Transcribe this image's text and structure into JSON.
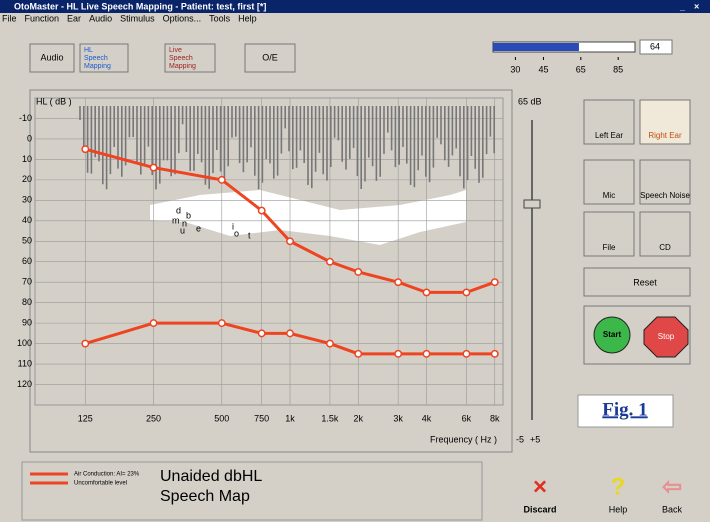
{
  "window": {
    "title": "OtoMaster - HL Live Speech Mapping - Patient: test, first [*]",
    "controls": [
      "_",
      "×"
    ]
  },
  "menu": [
    "File",
    "Function",
    "Ear",
    "Audio",
    "Stimulus",
    "Options...",
    "Tools",
    "Help"
  ],
  "toolbar": {
    "buttons": [
      "Audio",
      "HL Speech Mapping",
      "Live Speech Mapping",
      "O/E"
    ],
    "meter": {
      "value": 64,
      "lim": [
        18,
        94
      ],
      "ticks": [
        30,
        45,
        65,
        85
      ]
    }
  },
  "chart_data": {
    "type": "line",
    "ylabel": "HL ( dB )",
    "xlabel": "Frequency ( Hz )",
    "log_x": true,
    "invert_y": true,
    "grid": true,
    "xlim": [
      75,
      8700
    ],
    "xticks": [
      125,
      250,
      500,
      750,
      {
        "value": 1000,
        "label": "1k"
      },
      {
        "value": 1500,
        "label": "1.5k"
      },
      {
        "value": 2000,
        "label": "2k"
      },
      {
        "value": 3000,
        "label": "3k"
      },
      {
        "value": 4000,
        "label": "4k"
      },
      {
        "value": 6000,
        "label": "6k"
      },
      {
        "value": 8000,
        "label": "8k"
      }
    ],
    "ylim": [
      -20,
      130
    ],
    "yticks": [
      -10,
      0,
      10,
      20,
      30,
      40,
      50,
      60,
      70,
      80,
      90,
      100,
      110,
      120
    ],
    "x": [
      125,
      250,
      500,
      750,
      1000,
      1500,
      2000,
      3000,
      4000,
      6000,
      8000
    ],
    "series": [
      {
        "name": "Air Conduction: AI= 23%",
        "color": "#ee4422",
        "values": [
          5,
          14,
          20,
          35,
          50,
          60,
          65,
          70,
          75,
          75,
          70
        ]
      },
      {
        "name": "Uncomfortable level",
        "color": "#ee4422",
        "values": [
          100,
          90,
          90,
          95,
          95,
          100,
          105,
          105,
          105,
          105,
          105
        ]
      }
    ],
    "phonemes": [
      "d",
      "b",
      "m",
      "n",
      "u",
      "e",
      "i",
      "o",
      "t"
    ],
    "map_label": [
      "Unaided dbHL",
      "Speech Map"
    ]
  },
  "slider": {
    "top": "65 dB",
    "min": "-5",
    "max": "+5"
  },
  "side_buttons": [
    "Left Ear",
    "Right Ear",
    "Mic",
    "Speech Noise",
    "File",
    "CD",
    "Reset",
    "Start",
    "Stop"
  ],
  "figure_label": "Fig. 1",
  "bottom_buttons": [
    "Discard",
    "Help",
    "Back"
  ]
}
